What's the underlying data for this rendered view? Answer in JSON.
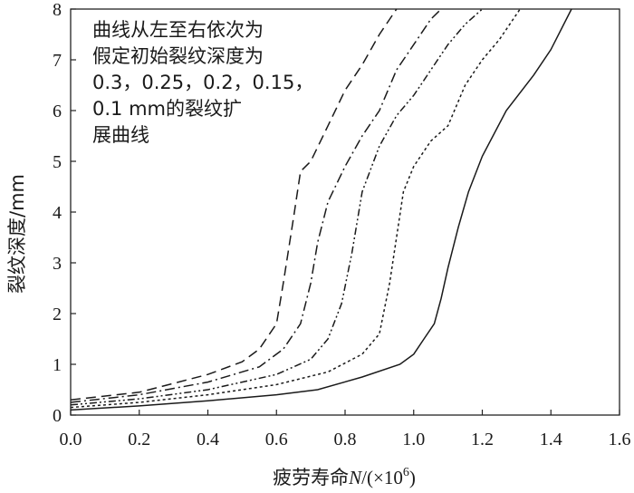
{
  "chart_data": {
    "type": "line",
    "xlabel": "疲劳寿命N/(×10⁶)",
    "xlabel_parts": {
      "prefix": "疲劳寿命",
      "symbol": "N",
      "unit": "/(×10",
      "exp": "6",
      "close": ")"
    },
    "ylabel": "裂纹深度/mm",
    "xlim": [
      0.0,
      1.6
    ],
    "ylim": [
      0,
      8
    ],
    "xticks": [
      "0.0",
      "0.2",
      "0.4",
      "0.6",
      "0.8",
      "1.0",
      "1.2",
      "1.4",
      "1.6"
    ],
    "yticks": [
      "0",
      "1",
      "2",
      "3",
      "4",
      "5",
      "6",
      "7",
      "8"
    ],
    "grid": false,
    "annotation_lines": [
      "曲线从左至右依次为",
      "假定初始裂纹深度为",
      "0.3，0.25，0.2，0.15，",
      "0.1 mm的裂纹扩",
      "展曲线"
    ],
    "series": [
      {
        "initial_depth_mm": 0.3,
        "style": "dashed",
        "x": [
          0.0,
          0.2,
          0.4,
          0.5,
          0.55,
          0.6,
          0.62,
          0.65,
          0.67,
          0.7,
          0.75,
          0.8,
          0.85,
          0.9,
          0.95
        ],
        "y": [
          0.3,
          0.45,
          0.8,
          1.05,
          1.3,
          1.8,
          2.6,
          3.9,
          4.8,
          5.0,
          5.7,
          6.4,
          6.9,
          7.5,
          8.0
        ]
      },
      {
        "initial_depth_mm": 0.25,
        "style": "dashdot",
        "x": [
          0.0,
          0.2,
          0.4,
          0.55,
          0.62,
          0.67,
          0.7,
          0.72,
          0.75,
          0.8,
          0.85,
          0.9,
          0.95,
          1.0,
          1.05,
          1.08
        ],
        "y": [
          0.25,
          0.4,
          0.65,
          0.95,
          1.3,
          1.8,
          2.6,
          3.4,
          4.2,
          4.9,
          5.5,
          6.0,
          6.8,
          7.3,
          7.8,
          8.0
        ]
      },
      {
        "initial_depth_mm": 0.2,
        "style": "dashdotdot",
        "x": [
          0.0,
          0.2,
          0.4,
          0.6,
          0.7,
          0.75,
          0.79,
          0.82,
          0.85,
          0.9,
          0.95,
          1.0,
          1.05,
          1.1,
          1.15,
          1.2
        ],
        "y": [
          0.2,
          0.32,
          0.5,
          0.8,
          1.1,
          1.5,
          2.2,
          3.2,
          4.4,
          5.3,
          5.9,
          6.3,
          6.8,
          7.3,
          7.7,
          8.0
        ]
      },
      {
        "initial_depth_mm": 0.15,
        "style": "dotted",
        "x": [
          0.0,
          0.2,
          0.4,
          0.6,
          0.75,
          0.85,
          0.9,
          0.93,
          0.97,
          1.0,
          1.05,
          1.1,
          1.15,
          1.2,
          1.25,
          1.31
        ],
        "y": [
          0.15,
          0.25,
          0.4,
          0.6,
          0.85,
          1.2,
          1.6,
          2.6,
          4.4,
          4.9,
          5.4,
          5.7,
          6.5,
          7.0,
          7.4,
          8.0
        ]
      },
      {
        "initial_depth_mm": 0.1,
        "style": "solid",
        "x": [
          0.0,
          0.2,
          0.4,
          0.6,
          0.72,
          0.85,
          0.96,
          1.0,
          1.03,
          1.06,
          1.08,
          1.1,
          1.13,
          1.16,
          1.2,
          1.27,
          1.35,
          1.4,
          1.46
        ],
        "y": [
          0.1,
          0.18,
          0.28,
          0.4,
          0.5,
          0.75,
          1.0,
          1.2,
          1.5,
          1.8,
          2.3,
          2.9,
          3.7,
          4.4,
          5.1,
          6.0,
          6.7,
          7.2,
          8.0
        ]
      }
    ]
  }
}
